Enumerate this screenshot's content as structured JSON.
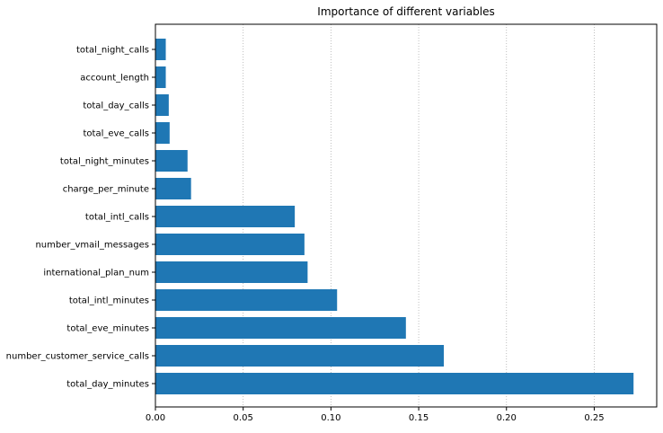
{
  "chart_data": {
    "type": "bar",
    "orientation": "horizontal",
    "title": "Importance of different variables",
    "xlabel": "",
    "ylabel": "",
    "xlim": [
      0,
      0.2856
    ],
    "xticks": [
      0.0,
      0.05,
      0.1,
      0.15,
      0.2,
      0.25
    ],
    "xtick_labels": [
      "0.00",
      "0.05",
      "0.10",
      "0.15",
      "0.20",
      "0.25"
    ],
    "grid": "x-dotted",
    "bar_color": "#1f77b4",
    "categories": [
      "total_day_minutes",
      "number_customer_service_calls",
      "total_eve_minutes",
      "total_intl_minutes",
      "international_plan_num",
      "number_vmail_messages",
      "total_intl_calls",
      "charge_per_minute",
      "total_night_minutes",
      "total_eve_calls",
      "total_day_calls",
      "account_length",
      "total_night_calls"
    ],
    "values": [
      0.2724,
      0.1643,
      0.1427,
      0.1035,
      0.0867,
      0.0849,
      0.0794,
      0.0203,
      0.0183,
      0.0081,
      0.0076,
      0.0059,
      0.0059
    ]
  }
}
